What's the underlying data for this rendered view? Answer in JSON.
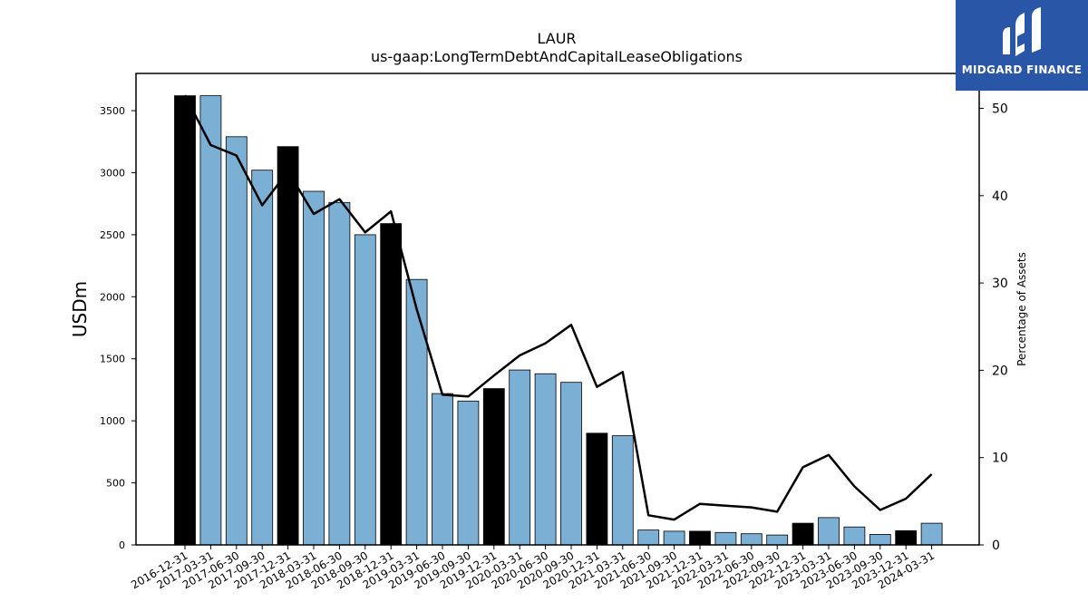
{
  "chart_data": {
    "type": "bar",
    "title": "LAUR",
    "subtitle": "us-gaap:LongTermDebtAndCapitalLeaseObligations",
    "ylabel": "USDm",
    "y2label": "Percentage of Assets",
    "ylim": [
      0,
      3800
    ],
    "y2lim": [
      0,
      54
    ],
    "yticks": [
      0,
      500,
      1000,
      1500,
      2000,
      2500,
      3000,
      3500
    ],
    "y2ticks": [
      0,
      10,
      20,
      30,
      40,
      50
    ],
    "categories": [
      "2016-12-31",
      "2017-03-31",
      "2017-06-30",
      "2017-09-30",
      "2017-12-31",
      "2018-03-31",
      "2018-06-30",
      "2018-09-30",
      "2018-12-31",
      "2019-03-31",
      "2019-06-30",
      "2019-09-30",
      "2019-12-31",
      "2020-03-31",
      "2020-06-30",
      "2020-09-30",
      "2020-12-31",
      "2021-03-31",
      "2021-06-30",
      "2021-09-30",
      "2021-12-31",
      "2022-03-31",
      "2022-06-30",
      "2022-09-30",
      "2022-12-31",
      "2023-03-31",
      "2023-06-30",
      "2023-09-30",
      "2023-12-31",
      "2024-03-31"
    ],
    "values": [
      3620,
      3620,
      3290,
      3020,
      3210,
      2850,
      2760,
      2500,
      2590,
      2140,
      1220,
      1160,
      1260,
      1410,
      1380,
      1310,
      900,
      880,
      120,
      110,
      110,
      100,
      90,
      80,
      175,
      220,
      145,
      85,
      115,
      175
    ],
    "fiscal_year_end": [
      true,
      false,
      false,
      false,
      true,
      false,
      false,
      false,
      true,
      false,
      false,
      false,
      true,
      false,
      false,
      false,
      true,
      false,
      false,
      false,
      true,
      false,
      false,
      false,
      true,
      false,
      false,
      false,
      true,
      false
    ],
    "pct_of_assets": [
      51.5,
      45.8,
      44.6,
      38.9,
      42.8,
      37.9,
      39.6,
      35.8,
      38.2,
      27.0,
      17.2,
      17.0,
      19.4,
      21.7,
      23.1,
      25.2,
      18.1,
      19.8,
      3.4,
      2.9,
      4.7,
      4.5,
      4.3,
      3.8,
      8.9,
      10.3,
      6.7,
      4.0,
      5.3,
      8.1
    ],
    "colors": {
      "fy_bar": "#000000",
      "q_bar": "#7bafd4",
      "line": "#000000"
    }
  },
  "logo": {
    "text": "MIDGARD FINANCE",
    "color": "#2a56a8"
  }
}
